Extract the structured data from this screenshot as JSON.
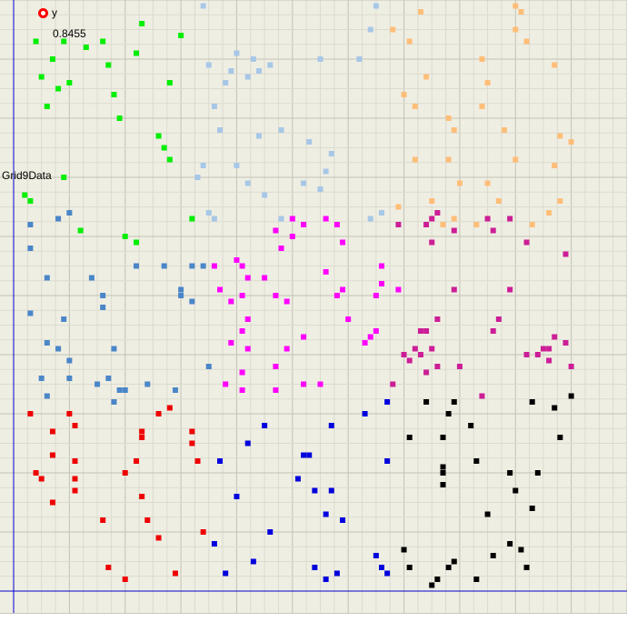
{
  "chart_data": {
    "type": "scatter",
    "title": "",
    "legend_label": "y",
    "value_readout": "0.8455",
    "series_label": "Grid9Data",
    "legend_position": "top-left",
    "grid": true,
    "xlim": [
      0,
      1.1
    ],
    "ylim": [
      0,
      1.0
    ],
    "series": [
      {
        "color": "#00ee00",
        "points": [
          [
            0.04,
            0.93
          ],
          [
            0.05,
            0.87
          ],
          [
            0.06,
            0.82
          ],
          [
            0.07,
            0.9
          ],
          [
            0.08,
            0.85
          ],
          [
            0.09,
            0.93
          ],
          [
            0.1,
            0.86
          ],
          [
            0.13,
            0.92
          ],
          [
            0.16,
            0.93
          ],
          [
            0.17,
            0.89
          ],
          [
            0.18,
            0.84
          ],
          [
            0.19,
            0.8
          ],
          [
            0.22,
            0.91
          ],
          [
            0.23,
            0.96
          ],
          [
            0.28,
            0.86
          ],
          [
            0.3,
            0.94
          ],
          [
            0.26,
            0.77
          ],
          [
            0.27,
            0.75
          ],
          [
            0.28,
            0.73
          ],
          [
            0.2,
            0.6
          ],
          [
            0.22,
            0.59
          ],
          [
            0.12,
            0.61
          ],
          [
            0.09,
            0.7
          ],
          [
            0.02,
            0.67
          ],
          [
            0.03,
            0.66
          ],
          [
            0.33,
            0.7
          ],
          [
            0.32,
            0.63
          ]
        ]
      },
      {
        "color": "#a7c7e7",
        "points": [
          [
            0.34,
            0.99
          ],
          [
            0.4,
            0.91
          ],
          [
            0.42,
            0.87
          ],
          [
            0.44,
            0.88
          ],
          [
            0.46,
            0.89
          ],
          [
            0.43,
            0.9
          ],
          [
            0.39,
            0.88
          ],
          [
            0.38,
            0.86
          ],
          [
            0.35,
            0.89
          ],
          [
            0.36,
            0.82
          ],
          [
            0.37,
            0.78
          ],
          [
            0.44,
            0.77
          ],
          [
            0.48,
            0.78
          ],
          [
            0.53,
            0.76
          ],
          [
            0.57,
            0.74
          ],
          [
            0.56,
            0.71
          ],
          [
            0.55,
            0.68
          ],
          [
            0.52,
            0.69
          ],
          [
            0.45,
            0.67
          ],
          [
            0.42,
            0.69
          ],
          [
            0.4,
            0.72
          ],
          [
            0.34,
            0.72
          ],
          [
            0.33,
            0.7
          ],
          [
            0.35,
            0.64
          ],
          [
            0.36,
            0.63
          ],
          [
            0.48,
            0.63
          ],
          [
            0.55,
            0.9
          ],
          [
            0.62,
            0.9
          ],
          [
            0.64,
            0.95
          ],
          [
            0.65,
            0.99
          ],
          [
            0.66,
            0.64
          ],
          [
            0.64,
            0.63
          ]
        ]
      },
      {
        "color": "#ffbe78",
        "points": [
          [
            0.68,
            0.95
          ],
          [
            0.71,
            0.93
          ],
          [
            0.73,
            0.98
          ],
          [
            0.74,
            0.87
          ],
          [
            0.7,
            0.84
          ],
          [
            0.72,
            0.82
          ],
          [
            0.78,
            0.8
          ],
          [
            0.79,
            0.78
          ],
          [
            0.72,
            0.73
          ],
          [
            0.78,
            0.73
          ],
          [
            0.8,
            0.69
          ],
          [
            0.75,
            0.66
          ],
          [
            0.69,
            0.65
          ],
          [
            0.77,
            0.62
          ],
          [
            0.79,
            0.63
          ],
          [
            0.84,
            0.9
          ],
          [
            0.85,
            0.86
          ],
          [
            0.84,
            0.82
          ],
          [
            0.88,
            0.78
          ],
          [
            0.9,
            0.99
          ],
          [
            0.91,
            0.98
          ],
          [
            0.9,
            0.95
          ],
          [
            0.92,
            0.93
          ],
          [
            0.97,
            0.89
          ],
          [
            0.9,
            0.73
          ],
          [
            0.85,
            0.69
          ],
          [
            0.87,
            0.66
          ],
          [
            0.83,
            0.62
          ],
          [
            0.93,
            0.62
          ],
          [
            0.97,
            0.72
          ],
          [
            0.98,
            0.77
          ],
          [
            1.0,
            0.76
          ],
          [
            0.96,
            0.64
          ],
          [
            0.98,
            0.66
          ]
        ]
      },
      {
        "color": "#4a86c8",
        "points": [
          [
            0.03,
            0.62
          ],
          [
            0.08,
            0.63
          ],
          [
            0.1,
            0.64
          ],
          [
            0.03,
            0.58
          ],
          [
            0.06,
            0.53
          ],
          [
            0.03,
            0.47
          ],
          [
            0.09,
            0.46
          ],
          [
            0.14,
            0.53
          ],
          [
            0.16,
            0.5
          ],
          [
            0.16,
            0.48
          ],
          [
            0.06,
            0.42
          ],
          [
            0.08,
            0.41
          ],
          [
            0.1,
            0.39
          ],
          [
            0.18,
            0.41
          ],
          [
            0.05,
            0.36
          ],
          [
            0.1,
            0.36
          ],
          [
            0.15,
            0.35
          ],
          [
            0.17,
            0.36
          ],
          [
            0.19,
            0.34
          ],
          [
            0.06,
            0.33
          ],
          [
            0.18,
            0.32
          ],
          [
            0.2,
            0.34
          ],
          [
            0.24,
            0.35
          ],
          [
            0.29,
            0.34
          ],
          [
            0.22,
            0.55
          ],
          [
            0.27,
            0.55
          ],
          [
            0.3,
            0.51
          ],
          [
            0.3,
            0.5
          ],
          [
            0.32,
            0.49
          ],
          [
            0.32,
            0.55
          ],
          [
            0.34,
            0.55
          ],
          [
            0.35,
            0.38
          ]
        ]
      },
      {
        "color": "#ff00ff",
        "points": [
          [
            0.36,
            0.55
          ],
          [
            0.4,
            0.56
          ],
          [
            0.41,
            0.55
          ],
          [
            0.42,
            0.53
          ],
          [
            0.45,
            0.53
          ],
          [
            0.37,
            0.51
          ],
          [
            0.39,
            0.49
          ],
          [
            0.41,
            0.5
          ],
          [
            0.47,
            0.5
          ],
          [
            0.49,
            0.49
          ],
          [
            0.47,
            0.61
          ],
          [
            0.5,
            0.6
          ],
          [
            0.48,
            0.58
          ],
          [
            0.5,
            0.63
          ],
          [
            0.52,
            0.62
          ],
          [
            0.56,
            0.63
          ],
          [
            0.58,
            0.62
          ],
          [
            0.59,
            0.59
          ],
          [
            0.56,
            0.54
          ],
          [
            0.58,
            0.5
          ],
          [
            0.59,
            0.51
          ],
          [
            0.6,
            0.46
          ],
          [
            0.42,
            0.46
          ],
          [
            0.41,
            0.44
          ],
          [
            0.39,
            0.42
          ],
          [
            0.42,
            0.41
          ],
          [
            0.49,
            0.41
          ],
          [
            0.52,
            0.43
          ],
          [
            0.47,
            0.38
          ],
          [
            0.41,
            0.37
          ],
          [
            0.38,
            0.35
          ],
          [
            0.41,
            0.34
          ],
          [
            0.47,
            0.34
          ],
          [
            0.52,
            0.35
          ],
          [
            0.55,
            0.35
          ],
          [
            0.63,
            0.42
          ],
          [
            0.64,
            0.43
          ],
          [
            0.65,
            0.44
          ],
          [
            0.66,
            0.52
          ],
          [
            0.65,
            0.5
          ],
          [
            0.66,
            0.55
          ],
          [
            0.69,
            0.51
          ]
        ]
      },
      {
        "color": "#cc1e96",
        "points": [
          [
            0.69,
            0.62
          ],
          [
            0.74,
            0.62
          ],
          [
            0.75,
            0.63
          ],
          [
            0.76,
            0.64
          ],
          [
            0.79,
            0.61
          ],
          [
            0.75,
            0.59
          ],
          [
            0.85,
            0.63
          ],
          [
            0.89,
            0.63
          ],
          [
            0.86,
            0.61
          ],
          [
            0.92,
            0.59
          ],
          [
            0.99,
            0.57
          ],
          [
            0.79,
            0.51
          ],
          [
            0.89,
            0.51
          ],
          [
            0.76,
            0.46
          ],
          [
            0.73,
            0.44
          ],
          [
            0.74,
            0.44
          ],
          [
            0.72,
            0.41
          ],
          [
            0.7,
            0.4
          ],
          [
            0.73,
            0.4
          ],
          [
            0.75,
            0.41
          ],
          [
            0.76,
            0.38
          ],
          [
            0.74,
            0.37
          ],
          [
            0.68,
            0.35
          ],
          [
            0.71,
            0.39
          ],
          [
            0.8,
            0.38
          ],
          [
            0.84,
            0.33
          ],
          [
            0.86,
            0.44
          ],
          [
            0.87,
            0.46
          ],
          [
            0.97,
            0.43
          ],
          [
            0.99,
            0.42
          ],
          [
            0.96,
            0.41
          ],
          [
            0.92,
            0.4
          ],
          [
            0.94,
            0.4
          ],
          [
            0.95,
            0.41
          ],
          [
            0.96,
            0.39
          ],
          [
            1.0,
            0.38
          ]
        ]
      },
      {
        "color": "#ee0000",
        "points": [
          [
            0.03,
            0.3
          ],
          [
            0.07,
            0.27
          ],
          [
            0.1,
            0.3
          ],
          [
            0.11,
            0.28
          ],
          [
            0.07,
            0.23
          ],
          [
            0.11,
            0.22
          ],
          [
            0.04,
            0.2
          ],
          [
            0.05,
            0.19
          ],
          [
            0.11,
            0.19
          ],
          [
            0.11,
            0.17
          ],
          [
            0.07,
            0.15
          ],
          [
            0.16,
            0.12
          ],
          [
            0.17,
            0.04
          ],
          [
            0.2,
            0.02
          ],
          [
            0.23,
            0.27
          ],
          [
            0.23,
            0.26
          ],
          [
            0.26,
            0.3
          ],
          [
            0.28,
            0.31
          ],
          [
            0.22,
            0.22
          ],
          [
            0.2,
            0.2
          ],
          [
            0.23,
            0.16
          ],
          [
            0.24,
            0.12
          ],
          [
            0.26,
            0.09
          ],
          [
            0.29,
            0.03
          ],
          [
            0.32,
            0.25
          ],
          [
            0.32,
            0.27
          ],
          [
            0.33,
            0.22
          ],
          [
            0.34,
            0.1
          ]
        ]
      },
      {
        "color": "#0000dd",
        "points": [
          [
            0.42,
            0.25
          ],
          [
            0.45,
            0.28
          ],
          [
            0.37,
            0.22
          ],
          [
            0.4,
            0.16
          ],
          [
            0.36,
            0.08
          ],
          [
            0.38,
            0.03
          ],
          [
            0.43,
            0.05
          ],
          [
            0.46,
            0.1
          ],
          [
            0.52,
            0.23
          ],
          [
            0.53,
            0.23
          ],
          [
            0.51,
            0.19
          ],
          [
            0.54,
            0.17
          ],
          [
            0.57,
            0.17
          ],
          [
            0.57,
            0.28
          ],
          [
            0.56,
            0.13
          ],
          [
            0.59,
            0.12
          ],
          [
            0.54,
            0.04
          ],
          [
            0.56,
            0.02
          ],
          [
            0.58,
            0.03
          ],
          [
            0.63,
            0.3
          ],
          [
            0.67,
            0.32
          ],
          [
            0.67,
            0.22
          ],
          [
            0.65,
            0.06
          ],
          [
            0.66,
            0.04
          ],
          [
            0.67,
            0.03
          ]
        ]
      },
      {
        "color": "#000000",
        "points": [
          [
            0.74,
            0.32
          ],
          [
            0.79,
            0.32
          ],
          [
            0.78,
            0.3
          ],
          [
            0.71,
            0.26
          ],
          [
            0.77,
            0.26
          ],
          [
            0.82,
            0.28
          ],
          [
            0.77,
            0.21
          ],
          [
            0.77,
            0.2
          ],
          [
            0.77,
            0.18
          ],
          [
            0.83,
            0.22
          ],
          [
            0.93,
            0.32
          ],
          [
            0.97,
            0.31
          ],
          [
            1.0,
            0.33
          ],
          [
            0.98,
            0.26
          ],
          [
            0.89,
            0.2
          ],
          [
            0.94,
            0.2
          ],
          [
            0.9,
            0.17
          ],
          [
            0.85,
            0.13
          ],
          [
            0.93,
            0.14
          ],
          [
            0.89,
            0.08
          ],
          [
            0.91,
            0.07
          ],
          [
            0.86,
            0.06
          ],
          [
            0.7,
            0.07
          ],
          [
            0.71,
            0.04
          ],
          [
            0.78,
            0.04
          ],
          [
            0.79,
            0.05
          ],
          [
            0.76,
            0.02
          ],
          [
            0.75,
            0.01
          ],
          [
            0.83,
            0.02
          ],
          [
            0.92,
            0.04
          ]
        ]
      }
    ]
  }
}
